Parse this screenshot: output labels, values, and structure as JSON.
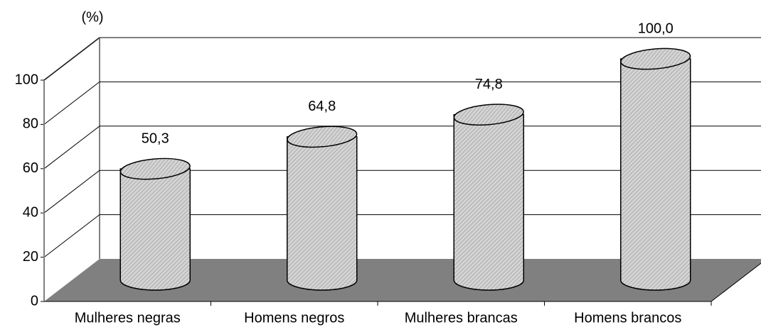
{
  "chart_data": {
    "type": "bar",
    "y_label": "(%)",
    "categories": [
      "Mulheres negras",
      "Homens negros",
      "Mulheres brancas",
      "Homens brancos"
    ],
    "values": [
      50.3,
      64.8,
      74.8,
      100.0
    ],
    "value_labels": [
      "50,3",
      "64,8",
      "74,8",
      "100,0"
    ],
    "ylim": [
      0,
      100
    ],
    "yticks": [
      0,
      20,
      40,
      60,
      80,
      100
    ],
    "grid": true,
    "color": "#c8c8c8"
  }
}
